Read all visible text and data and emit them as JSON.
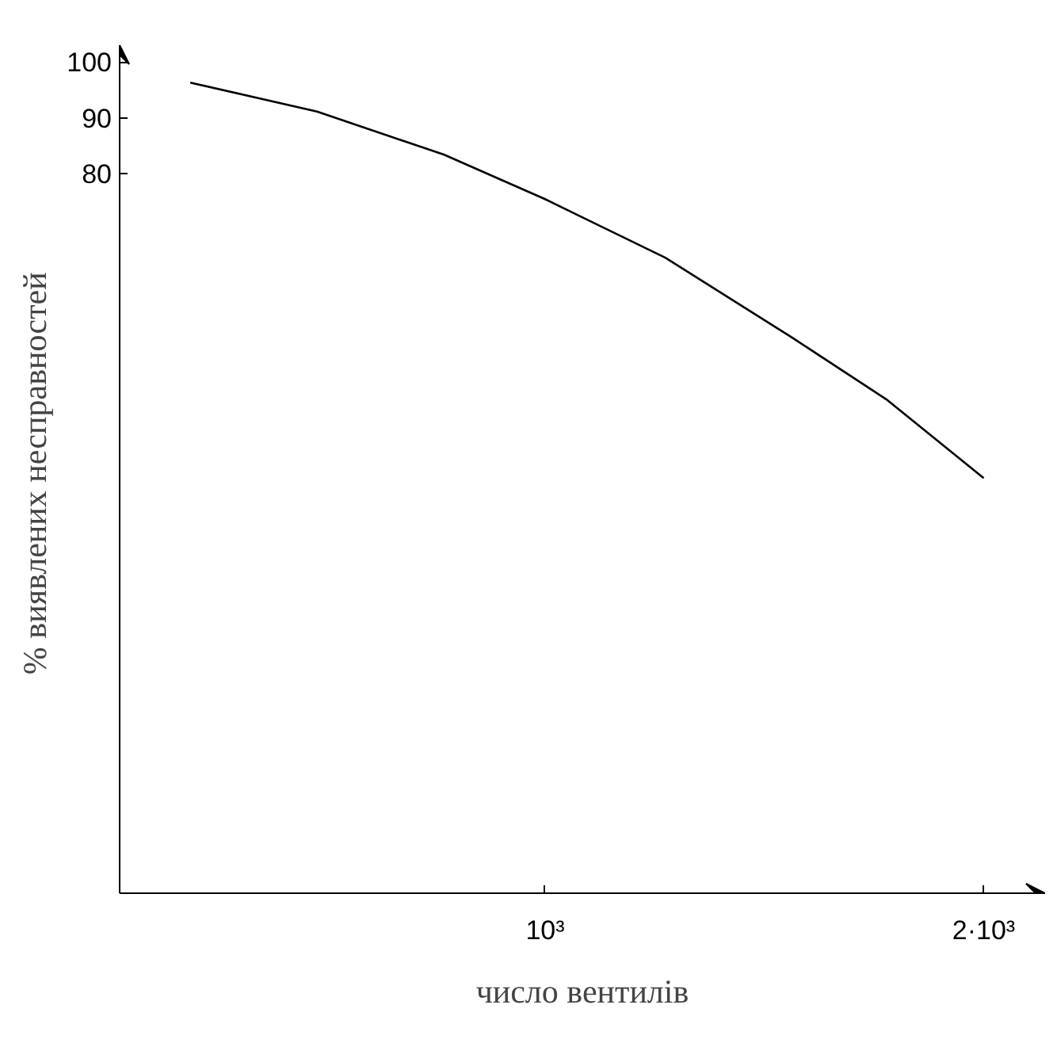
{
  "chart_data": {
    "type": "line",
    "xlabel": "число вентилів",
    "ylabel": "%  виявлених несправностей",
    "x": [
      191,
      480,
      769,
      1000,
      1274,
      1563,
      1780,
      2000
    ],
    "series": [
      {
        "color": "#000000",
        "values": [
          96.3,
          91.1,
          83.4,
          75.4,
          64.9,
          50.6,
          39.4,
          25.4
        ]
      }
    ],
    "xlim": [
      30,
      2140
    ],
    "ylim": [
      -49,
      103
    ],
    "xticks": [
      {
        "value": 1000,
        "label": "10³"
      },
      {
        "value": 2000,
        "label": "2·10³"
      }
    ],
    "yticks": [
      80,
      90,
      100
    ],
    "grid": false,
    "marker": "none",
    "line_style": "solid"
  }
}
